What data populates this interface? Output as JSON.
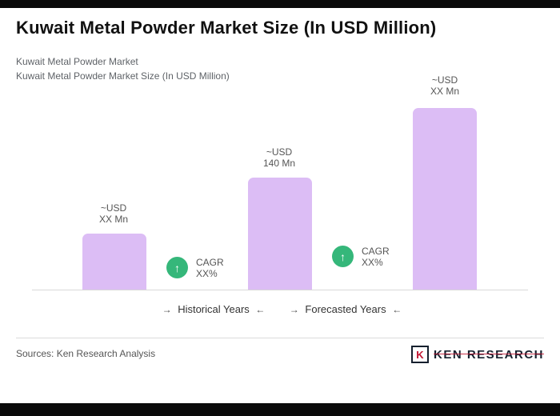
{
  "header": {
    "title": "Kuwait Metal Powder Market Size (In USD Million)",
    "subtitle_line1": "Kuwait Metal Powder Market",
    "subtitle_line2": "Kuwait Metal Powder Market Size (In USD Million)"
  },
  "chart_data": {
    "type": "bar",
    "title": "Kuwait Metal Powder Market Size (In USD Million)",
    "categories": [
      "~USD XX Mn",
      "~USD 140 Mn",
      "~USD XX Mn"
    ],
    "values": [
      70,
      140,
      227
    ],
    "ylabel": "USD Million",
    "bar_color": "#dcbdf5",
    "bars": [
      {
        "label_line1": "~USD",
        "label_line2": "XX Mn",
        "value_mn": 70
      },
      {
        "label_line1": "~USD",
        "label_line2": "140 Mn",
        "value_mn": 140
      },
      {
        "label_line1": "~USD",
        "label_line2": "XX Mn",
        "value_mn": 227
      }
    ]
  },
  "annotations": [
    {
      "line1": "CAGR",
      "line2": "XX%"
    },
    {
      "line1": "CAGR",
      "line2": "XX%"
    }
  ],
  "icons": {
    "up_arrow": "↑"
  },
  "period_labels": {
    "historical": "Historical Years",
    "forecasted": "Forecasted Years",
    "arrow_right": "→",
    "arrow_left": "←"
  },
  "footer": {
    "sources": "Sources: Ken Research Analysis",
    "logo_k": "K",
    "logo_text": "Ken Research"
  },
  "colors": {
    "cagr_green": "#35b77a",
    "bar_purple": "#dcbdf5"
  }
}
